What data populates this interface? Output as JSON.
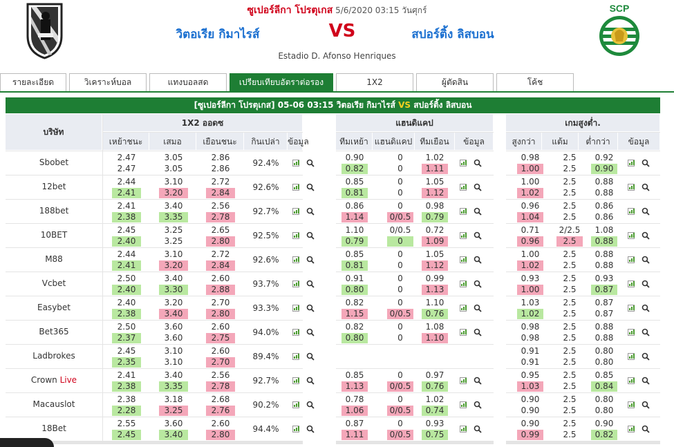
{
  "header": {
    "league": "ซูเปอร์ลีกา โปรตุเกส",
    "datetime": "5/6/2020 03:15 วันศุกร์",
    "home": "วิตอเรีย กิมาไรส์",
    "vs": "VS",
    "away": "สปอร์ติ้ง ลิสบอน",
    "stadium": "Estadio D. Afonso Henriques"
  },
  "tabs": [
    {
      "label": "รายละเอียด"
    },
    {
      "label": "วิเคราะห์บอล"
    },
    {
      "label": "แทงบอลสด"
    },
    {
      "label": "เปรียบเทียบอัตราต่อรอง"
    },
    {
      "label": "1X2"
    },
    {
      "label": "ผู้ตัดสิน"
    },
    {
      "label": "โค้ช"
    }
  ],
  "title_bar": {
    "league": "[ซูเปอร์ลีกา โปรตุเกส]",
    "time": "05-06 03:15",
    "home": "วิตอเรีย กิมาไรส์",
    "vs": "VS",
    "away": "สปอร์ติ้ง ลิสบอน"
  },
  "headers": {
    "company": "บริษัท",
    "group_1x2": "1X2 ออดซ",
    "group_hdp": "แฮนดิแคป",
    "group_ou": "เกมสูงต่ำ.",
    "cols_1x2": [
      "เหย้าชนะ",
      "เสมอ",
      "เยือนชนะ",
      "กินเปล่า",
      "ข้อมูล"
    ],
    "cols_hdp": [
      "ทีมเหย้า",
      "แฮนดิแคป",
      "ทีมเยือน",
      "ข้อมูล"
    ],
    "cols_ou": [
      "สูงกว่า",
      "แต้ม",
      "ต่ำกว่า",
      "ข้อมูล"
    ]
  },
  "icons": {
    "chart": "chart-icon",
    "search": "search-icon"
  },
  "rows": [
    {
      "name": "Sbobet",
      "live": "",
      "x": [
        [
          "2.47",
          "3.05",
          "2.86"
        ],
        [
          "2.47",
          "3.05",
          "2.86"
        ]
      ],
      "xc": [
        [
          "",
          "",
          ""
        ],
        [
          "",
          "",
          ""
        ]
      ],
      "ret": "92.4%",
      "h": [
        [
          "0.90",
          "0",
          "1.02"
        ],
        [
          "0.82",
          "0",
          "1.11"
        ]
      ],
      "hc": [
        [
          "",
          "",
          ""
        ],
        [
          "g",
          "",
          "p"
        ]
      ],
      "o": [
        [
          "0.98",
          "2.5",
          "0.92"
        ],
        [
          "1.00",
          "2.5",
          "0.90"
        ]
      ],
      "oc": [
        [
          "",
          "",
          ""
        ],
        [
          "p",
          "",
          "g"
        ]
      ]
    },
    {
      "name": "12bet",
      "live": "",
      "x": [
        [
          "2.44",
          "3.10",
          "2.72"
        ],
        [
          "2.41",
          "3.20",
          "2.84"
        ]
      ],
      "xc": [
        [
          "",
          "",
          ""
        ],
        [
          "g",
          "p",
          "p"
        ]
      ],
      "ret": "92.6%",
      "h": [
        [
          "0.85",
          "0",
          "1.05"
        ],
        [
          "0.81",
          "0",
          "1.12"
        ]
      ],
      "hc": [
        [
          "",
          "",
          ""
        ],
        [
          "g",
          "",
          "p"
        ]
      ],
      "o": [
        [
          "1.00",
          "2.5",
          "0.88"
        ],
        [
          "1.02",
          "2.5",
          "0.88"
        ]
      ],
      "oc": [
        [
          "",
          "",
          ""
        ],
        [
          "p",
          "",
          ""
        ]
      ]
    },
    {
      "name": "188bet",
      "live": "",
      "x": [
        [
          "2.41",
          "3.40",
          "2.56"
        ],
        [
          "2.38",
          "3.35",
          "2.78"
        ]
      ],
      "xc": [
        [
          "",
          "",
          ""
        ],
        [
          "g",
          "g",
          "p"
        ]
      ],
      "ret": "92.7%",
      "h": [
        [
          "0.86",
          "0",
          "0.98"
        ],
        [
          "1.14",
          "0/0.5",
          "0.79"
        ]
      ],
      "hc": [
        [
          "",
          "",
          ""
        ],
        [
          "p",
          "p",
          "g"
        ]
      ],
      "o": [
        [
          "0.96",
          "2.5",
          "0.86"
        ],
        [
          "1.04",
          "2.5",
          "0.86"
        ]
      ],
      "oc": [
        [
          "",
          "",
          ""
        ],
        [
          "p",
          "",
          ""
        ]
      ]
    },
    {
      "name": "10BET",
      "live": "",
      "x": [
        [
          "2.45",
          "3.25",
          "2.65"
        ],
        [
          "2.40",
          "3.25",
          "2.80"
        ]
      ],
      "xc": [
        [
          "",
          "",
          ""
        ],
        [
          "g",
          "",
          "p"
        ]
      ],
      "ret": "92.5%",
      "h": [
        [
          "1.10",
          "0/0.5",
          "0.72"
        ],
        [
          "0.79",
          "0",
          "1.09"
        ]
      ],
      "hc": [
        [
          "",
          "",
          ""
        ],
        [
          "g",
          "g",
          "p"
        ]
      ],
      "o": [
        [
          "0.71",
          "2/2.5",
          "1.08"
        ],
        [
          "0.96",
          "2.5",
          "0.88"
        ]
      ],
      "oc": [
        [
          "",
          "",
          ""
        ],
        [
          "p",
          "p",
          "g"
        ]
      ]
    },
    {
      "name": "M88",
      "live": "",
      "x": [
        [
          "2.44",
          "3.10",
          "2.72"
        ],
        [
          "2.41",
          "3.20",
          "2.84"
        ]
      ],
      "xc": [
        [
          "",
          "",
          ""
        ],
        [
          "g",
          "p",
          "p"
        ]
      ],
      "ret": "92.6%",
      "h": [
        [
          "0.85",
          "0",
          "1.05"
        ],
        [
          "0.81",
          "0",
          "1.12"
        ]
      ],
      "hc": [
        [
          "",
          "",
          ""
        ],
        [
          "g",
          "",
          "p"
        ]
      ],
      "o": [
        [
          "1.00",
          "2.5",
          "0.88"
        ],
        [
          "1.02",
          "2.5",
          "0.88"
        ]
      ],
      "oc": [
        [
          "",
          "",
          ""
        ],
        [
          "p",
          "",
          ""
        ]
      ]
    },
    {
      "name": "Vcbet",
      "live": "",
      "x": [
        [
          "2.50",
          "3.40",
          "2.60"
        ],
        [
          "2.40",
          "3.30",
          "2.88"
        ]
      ],
      "xc": [
        [
          "",
          "",
          ""
        ],
        [
          "g",
          "g",
          "p"
        ]
      ],
      "ret": "93.7%",
      "h": [
        [
          "0.91",
          "0",
          "0.99"
        ],
        [
          "0.80",
          "0",
          "1.13"
        ]
      ],
      "hc": [
        [
          "",
          "",
          ""
        ],
        [
          "g",
          "",
          "p"
        ]
      ],
      "o": [
        [
          "0.93",
          "2.5",
          "0.93"
        ],
        [
          "1.00",
          "2.5",
          "0.87"
        ]
      ],
      "oc": [
        [
          "",
          "",
          ""
        ],
        [
          "p",
          "",
          "g"
        ]
      ]
    },
    {
      "name": "Easybet",
      "live": "",
      "x": [
        [
          "2.40",
          "3.20",
          "2.70"
        ],
        [
          "2.38",
          "3.40",
          "2.80"
        ]
      ],
      "xc": [
        [
          "",
          "",
          ""
        ],
        [
          "g",
          "p",
          "p"
        ]
      ],
      "ret": "93.3%",
      "h": [
        [
          "0.82",
          "0",
          "1.10"
        ],
        [
          "1.15",
          "0/0.5",
          "0.76"
        ]
      ],
      "hc": [
        [
          "",
          "",
          ""
        ],
        [
          "p",
          "p",
          "g"
        ]
      ],
      "o": [
        [
          "1.03",
          "2.5",
          "0.87"
        ],
        [
          "1.02",
          "2.5",
          "0.87"
        ]
      ],
      "oc": [
        [
          "",
          "",
          ""
        ],
        [
          "g",
          "",
          ""
        ]
      ]
    },
    {
      "name": "Bet365",
      "live": "",
      "x": [
        [
          "2.50",
          "3.60",
          "2.60"
        ],
        [
          "2.37",
          "3.60",
          "2.75"
        ]
      ],
      "xc": [
        [
          "",
          "",
          ""
        ],
        [
          "g",
          "",
          "p"
        ]
      ],
      "ret": "94.0%",
      "h": [
        [
          "0.82",
          "0",
          "1.08"
        ],
        [
          "0.80",
          "0",
          "1.10"
        ]
      ],
      "hc": [
        [
          "",
          "",
          ""
        ],
        [
          "g",
          "",
          "p"
        ]
      ],
      "o": [
        [
          "0.98",
          "2.5",
          "0.88"
        ],
        [
          "0.98",
          "2.5",
          "0.88"
        ]
      ],
      "oc": [
        [
          "",
          "",
          ""
        ],
        [
          "",
          "",
          ""
        ]
      ]
    },
    {
      "name": "Ladbrokes",
      "live": "",
      "x": [
        [
          "2.45",
          "3.10",
          "2.60"
        ],
        [
          "2.35",
          "3.10",
          "2.70"
        ]
      ],
      "xc": [
        [
          "",
          "",
          ""
        ],
        [
          "g",
          "",
          "p"
        ]
      ],
      "ret": "89.4%",
      "h": [],
      "hc": [],
      "o": [
        [
          "0.91",
          "2.5",
          "0.80"
        ],
        [
          "0.91",
          "2.5",
          "0.80"
        ]
      ],
      "oc": [
        [
          "",
          "",
          ""
        ],
        [
          "",
          "",
          ""
        ]
      ]
    },
    {
      "name": "Crown",
      "live": "Live",
      "x": [
        [
          "2.41",
          "3.40",
          "2.56"
        ],
        [
          "2.38",
          "3.35",
          "2.78"
        ]
      ],
      "xc": [
        [
          "",
          "",
          ""
        ],
        [
          "g",
          "g",
          "p"
        ]
      ],
      "ret": "92.7%",
      "h": [
        [
          "0.85",
          "0",
          "0.97"
        ],
        [
          "1.13",
          "0/0.5",
          "0.76"
        ]
      ],
      "hc": [
        [
          "",
          "",
          ""
        ],
        [
          "p",
          "p",
          "g"
        ]
      ],
      "o": [
        [
          "0.95",
          "2.5",
          "0.85"
        ],
        [
          "1.03",
          "2.5",
          "0.84"
        ]
      ],
      "oc": [
        [
          "",
          "",
          ""
        ],
        [
          "p",
          "",
          "g"
        ]
      ]
    },
    {
      "name": "Macauslot",
      "live": "",
      "x": [
        [
          "2.38",
          "3.18",
          "2.68"
        ],
        [
          "2.28",
          "3.25",
          "2.76"
        ]
      ],
      "xc": [
        [
          "",
          "",
          ""
        ],
        [
          "g",
          "p",
          "p"
        ]
      ],
      "ret": "90.2%",
      "h": [
        [
          "0.78",
          "0",
          "1.02"
        ],
        [
          "1.06",
          "0/0.5",
          "0.74"
        ]
      ],
      "hc": [
        [
          "",
          "",
          ""
        ],
        [
          "p",
          "p",
          "g"
        ]
      ],
      "o": [
        [
          "0.90",
          "2.5",
          "0.80"
        ],
        [
          "0.90",
          "2.5",
          "0.80"
        ]
      ],
      "oc": [
        [
          "",
          "",
          ""
        ],
        [
          "",
          "",
          ""
        ]
      ]
    },
    {
      "name": "18Bet",
      "live": "",
      "x": [
        [
          "2.55",
          "3.60",
          "2.60"
        ],
        [
          "2.45",
          "3.40",
          "2.80"
        ]
      ],
      "xc": [
        [
          "",
          "",
          ""
        ],
        [
          "g",
          "g",
          "p"
        ]
      ],
      "ret": "94.4%",
      "h": [
        [
          "0.87",
          "0",
          "0.93"
        ],
        [
          "1.11",
          "0/0.5",
          "0.75"
        ]
      ],
      "hc": [
        [
          "",
          "",
          ""
        ],
        [
          "p",
          "p",
          "g"
        ]
      ],
      "o": [
        [
          "0.90",
          "2.5",
          "0.90"
        ],
        [
          "0.99",
          "2.5",
          "0.82"
        ]
      ],
      "oc": [
        [
          "",
          "",
          ""
        ],
        [
          "p",
          "",
          "g"
        ]
      ]
    }
  ]
}
